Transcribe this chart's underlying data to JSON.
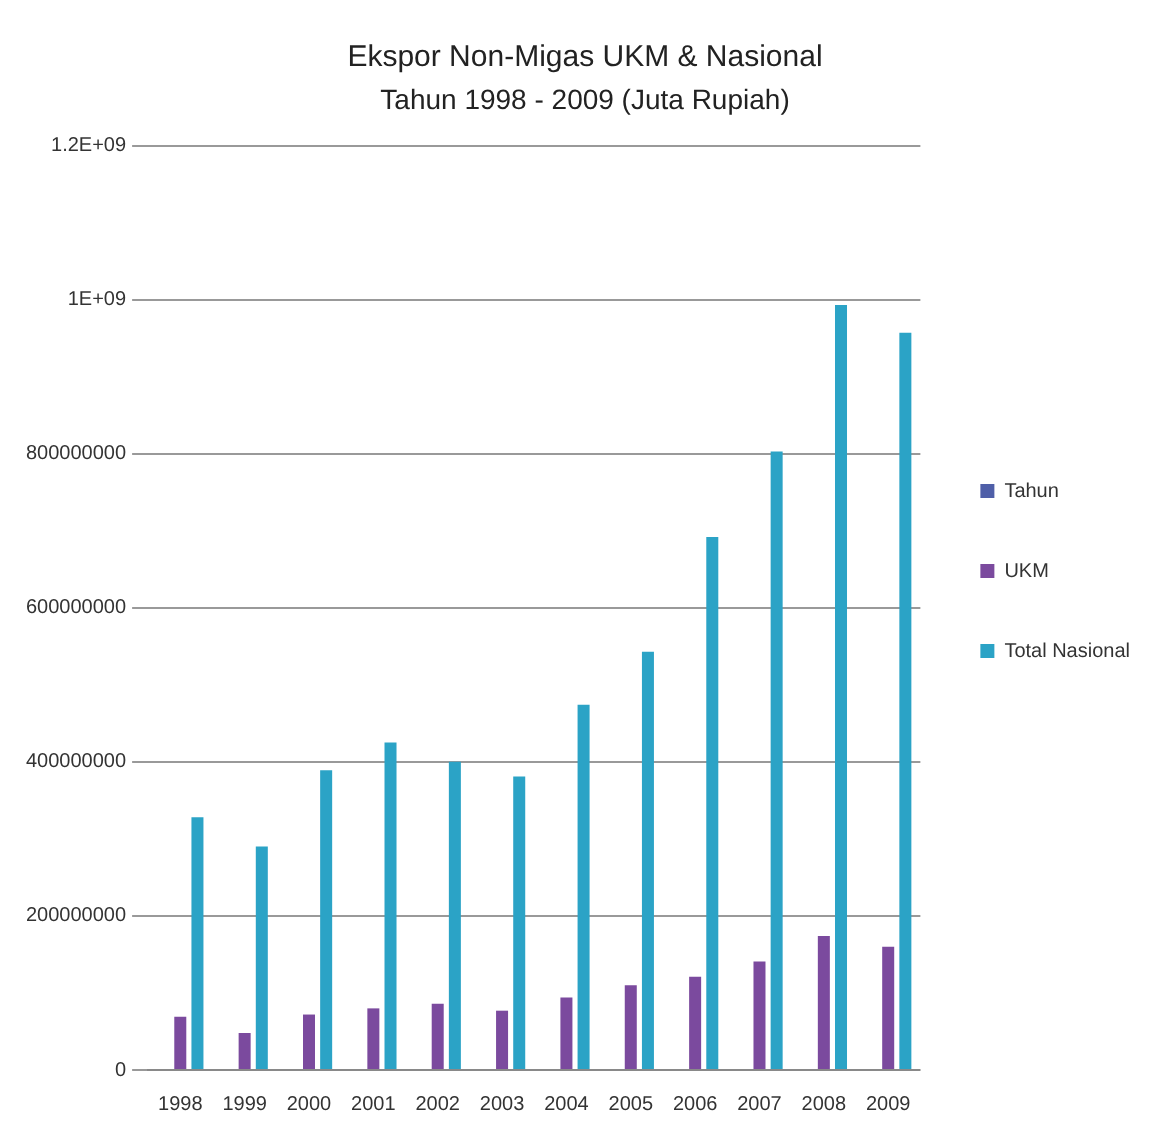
{
  "chart_data": {
    "type": "bar",
    "title": "Ekspor Non-Migas UKM & Nasional",
    "subtitle": "Tahun 1998 - 2009 (Juta Rupiah)",
    "categories": [
      "1998",
      "1999",
      "2000",
      "2001",
      "2002",
      "2003",
      "2004",
      "2005",
      "2006",
      "2007",
      "2008",
      "2009"
    ],
    "series": [
      {
        "name": "Tahun",
        "color": "#4f5fa8",
        "values": [
          null,
          null,
          null,
          null,
          null,
          null,
          null,
          null,
          null,
          null,
          null,
          null
        ]
      },
      {
        "name": "UKM",
        "color": "#7b4a9e",
        "values": [
          69000000,
          48000000,
          72000000,
          80000000,
          86000000,
          77000000,
          94000000,
          110000000,
          121000000,
          141000000,
          174000000,
          160000000
        ]
      },
      {
        "name": "Total Nasional",
        "color": "#2ba3c6",
        "values": [
          328000000,
          290000000,
          389000000,
          425000000,
          400000000,
          381000000,
          474000000,
          543000000,
          692000000,
          803000000,
          993000000,
          957000000
        ]
      }
    ],
    "ylim": [
      0,
      1200000000
    ],
    "yticks": [
      0,
      200000000,
      400000000,
      600000000,
      800000000,
      {
        "value": 1000000000,
        "label": "1E+09"
      },
      {
        "value": 1200000000,
        "label": "1.2E+09"
      }
    ],
    "grid": "y",
    "legend": "right"
  }
}
